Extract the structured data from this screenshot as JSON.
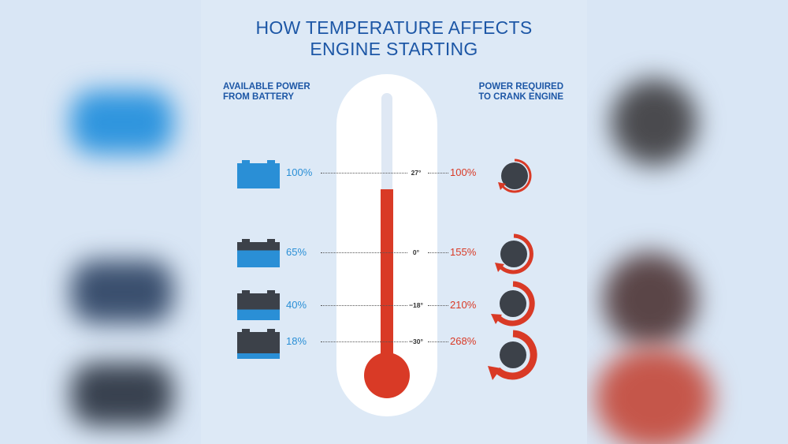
{
  "title_line1": "HOW TEMPERATURE AFFECTS",
  "title_line2": "ENGINE STARTING",
  "left_header_line1": "AVAILABLE POWER",
  "left_header_line2": "FROM BATTERY",
  "right_header_line1": "POWER REQUIRED",
  "right_header_line2": "TO CRANK ENGINE",
  "rows": [
    {
      "battery_pct": "100%",
      "temp": "27°",
      "crank_pct": "100%"
    },
    {
      "battery_pct": "65%",
      "temp": "0°",
      "crank_pct": "155%"
    },
    {
      "battery_pct": "40%",
      "temp": "−18°",
      "crank_pct": "210%"
    },
    {
      "battery_pct": "18%",
      "temp": "−30°",
      "crank_pct": "268%"
    }
  ],
  "colors": {
    "title_blue": "#1d57a6",
    "battery_blue": "#2a8fd6",
    "battery_dark": "#3c4149",
    "crank_red": "#d93a26",
    "panel_bg": "#dde9f6"
  },
  "icons": [
    "battery-icon",
    "thermometer-icon",
    "crank-dial-icon"
  ]
}
